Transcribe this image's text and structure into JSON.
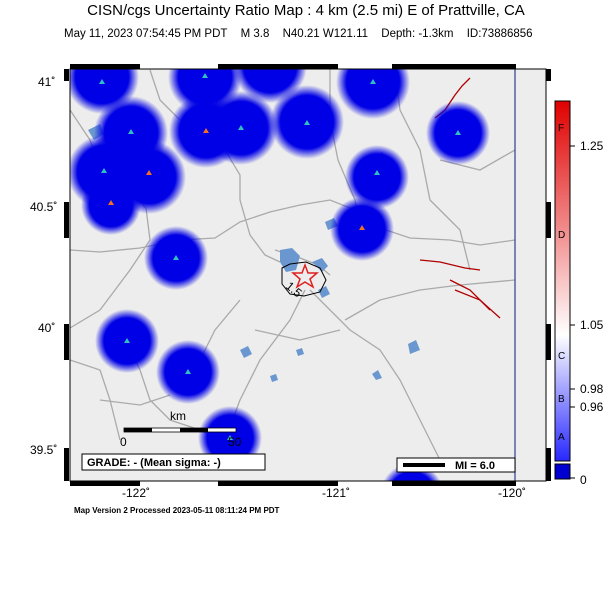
{
  "title": "CISN/cgs Uncertainty Ratio Map : 4 km (2.5 mi) E of Prattville, CA",
  "event": {
    "datetime": "May 11, 2023 07:54:45 PM PDT",
    "magnitude": "M 3.8",
    "location": "N40.21 W121.11",
    "depth": "Depth: -1.3km",
    "id": "ID:73886856"
  },
  "map": {
    "lat_labels": [
      "41˚",
      "40.5˚",
      "40˚",
      "39.5˚"
    ],
    "lon_labels": [
      "-122˚",
      "-121˚",
      "-120˚"
    ],
    "grade_text": "GRADE: - (Mean sigma: -)",
    "mi_text": "MI = 6.0",
    "scale_label": "km",
    "scale_zero": "0",
    "scale_end": "50",
    "contour_label": "1.5"
  },
  "colorbar": {
    "values": [
      "1.25",
      "1.05",
      "0.98",
      "0.96",
      "0"
    ],
    "letters": [
      "F",
      "D",
      "C",
      "B",
      "A"
    ],
    "colors": {
      "top": "#e00000",
      "mid": "#ffffff",
      "bottom": "#2020ff",
      "base": "#0000d0"
    }
  },
  "footer": "Map Version 2 Processed 2023-05-11 08:11:24 PM PDT"
}
